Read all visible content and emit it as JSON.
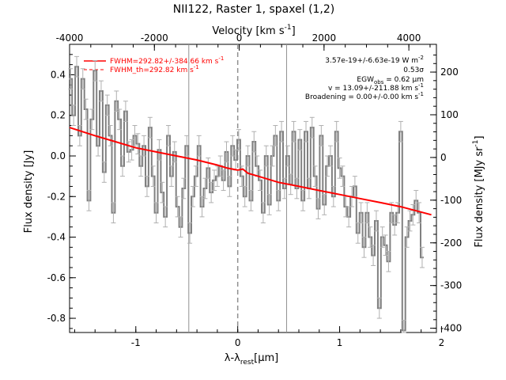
{
  "chart_data": {
    "type": "line",
    "title": "NII122, Raster 1, spaxel (1,2)",
    "xlabel": "λ-λ",
    "xlabel_sub": "rest",
    "xlabel_unit": "[μm]",
    "ylabel": "Flux density [Jy]",
    "top_xlabel": "Velocity [km s",
    "top_xlabel_sup": "-1",
    "top_xlabel_end": "]",
    "right_ylabel": "Flux density [MJy sr",
    "right_ylabel_sup": "-1",
    "right_ylabel_end": "]",
    "xlim": [
      -1.65,
      1.95
    ],
    "ylim": [
      -0.87,
      0.55
    ],
    "top_xlim": [
      -4000,
      4650
    ],
    "right_ylim": [
      -410,
      265
    ],
    "x_ticks": [
      -1,
      0,
      1,
      2
    ],
    "y_ticks": [
      -0.8,
      -0.6,
      -0.4,
      -0.2,
      0.0,
      0.2,
      0.4
    ],
    "top_ticks": [
      -4000,
      -2000,
      0,
      2000,
      4000
    ],
    "right_ticks": [
      -400,
      -300,
      -200,
      -100,
      0,
      100,
      200
    ],
    "vlines": [
      -0.48,
      0.48
    ],
    "dashed_vline": 0,
    "annotations": [
      "3.57e-19+/-6.63e-19 W m",
      "0.53σ",
      "EGW",
      "v = 13.09+/-211.88 km s",
      "Broadening = 0.00+/-0.00 km s"
    ],
    "annotation_parts": {
      "flux_sup": "-2",
      "egw_sub": "obs",
      "egw_value": " = 0.62 μm",
      "kms_sup": "-1"
    },
    "legend": [
      {
        "name": "FWHM=292.82+/-384.66 km s",
        "sup": "-1",
        "style": "solid"
      },
      {
        "name": "FWHM_th=292.82 km s",
        "sup": "-1",
        "style": "dashed"
      }
    ],
    "series": [
      {
        "name": "spectrum",
        "color": "#808080",
        "x": [
          -1.64,
          -1.61,
          -1.58,
          -1.55,
          -1.52,
          -1.49,
          -1.46,
          -1.43,
          -1.4,
          -1.37,
          -1.34,
          -1.31,
          -1.28,
          -1.25,
          -1.22,
          -1.19,
          -1.16,
          -1.13,
          -1.1,
          -1.07,
          -1.04,
          -1.01,
          -0.98,
          -0.95,
          -0.92,
          -0.89,
          -0.86,
          -0.83,
          -0.8,
          -0.77,
          -0.74,
          -0.71,
          -0.68,
          -0.65,
          -0.62,
          -0.59,
          -0.56,
          -0.53,
          -0.5,
          -0.47,
          -0.44,
          -0.41,
          -0.38,
          -0.35,
          -0.32,
          -0.29,
          -0.26,
          -0.23,
          -0.2,
          -0.17,
          -0.14,
          -0.11,
          -0.08,
          -0.05,
          -0.02,
          0.01,
          0.04,
          0.07,
          0.1,
          0.13,
          0.16,
          0.19,
          0.22,
          0.25,
          0.28,
          0.31,
          0.34,
          0.37,
          0.4,
          0.43,
          0.46,
          0.49,
          0.52,
          0.55,
          0.58,
          0.61,
          0.64,
          0.67,
          0.7,
          0.73,
          0.76,
          0.79,
          0.82,
          0.85,
          0.88,
          0.91,
          0.94,
          0.97,
          1.0,
          1.03,
          1.06,
          1.09,
          1.12,
          1.15,
          1.18,
          1.21,
          1.24,
          1.27,
          1.3,
          1.33,
          1.36,
          1.39,
          1.42,
          1.45,
          1.48,
          1.51,
          1.54,
          1.57,
          1.6,
          1.63,
          1.66,
          1.69,
          1.72,
          1.75,
          1.78,
          1.81
        ],
        "values": [
          0.38,
          0.2,
          0.44,
          0.1,
          0.38,
          0.23,
          -0.22,
          0.18,
          0.42,
          0.05,
          0.32,
          -0.08,
          0.25,
          0.1,
          -0.28,
          0.27,
          0.18,
          -0.05,
          0.22,
          0.02,
          0.03,
          0.1,
          0.06,
          -0.05,
          0.05,
          -0.15,
          0.14,
          -0.1,
          -0.28,
          0.03,
          -0.18,
          -0.3,
          0.1,
          -0.1,
          0.02,
          -0.25,
          -0.35,
          -0.16,
          0.05,
          -0.38,
          -0.2,
          -0.1,
          0.05,
          -0.25,
          -0.16,
          -0.06,
          -0.18,
          -0.12,
          -0.1,
          -0.05,
          -0.12,
          0.02,
          -0.15,
          0.05,
          -0.02,
          0.08,
          -0.1,
          -0.2,
          0.0,
          -0.22,
          0.07,
          -0.05,
          -0.12,
          -0.28,
          0.0,
          -0.24,
          0.0,
          0.1,
          -0.22,
          0.12,
          -0.16,
          0.0,
          -0.14,
          0.12,
          -0.16,
          0.08,
          -0.22,
          0.12,
          -0.16,
          0.14,
          -0.1,
          -0.26,
          0.1,
          -0.24,
          -0.05,
          0.0,
          -0.2,
          0.12,
          -0.06,
          -0.1,
          -0.25,
          -0.3,
          -0.2,
          -0.15,
          -0.38,
          -0.28,
          -0.45,
          -0.28,
          -0.4,
          -0.49,
          -0.32,
          -0.75,
          -0.4,
          -0.44,
          -0.52,
          -0.28,
          -0.34,
          -0.28,
          0.12,
          -0.86,
          -0.4,
          -0.32,
          -0.29,
          -0.22,
          -0.28,
          -0.5
        ],
        "errors": 0.05
      },
      {
        "name": "fit",
        "color": "#ff0000",
        "x": [
          -1.65,
          -1.4,
          -1.2,
          -1.0,
          -0.8,
          -0.6,
          -0.4,
          -0.2,
          -0.1,
          0.0,
          0.05,
          0.1,
          0.2,
          0.4,
          0.6,
          0.8,
          1.0,
          1.2,
          1.4,
          1.6,
          1.9
        ],
        "values": [
          0.14,
          0.1,
          0.07,
          0.04,
          0.02,
          0.0,
          -0.02,
          -0.045,
          -0.06,
          -0.07,
          -0.065,
          -0.085,
          -0.1,
          -0.13,
          -0.15,
          -0.17,
          -0.19,
          -0.21,
          -0.23,
          -0.25,
          -0.29
        ]
      }
    ],
    "grid": false,
    "legend_position": "top-left"
  }
}
